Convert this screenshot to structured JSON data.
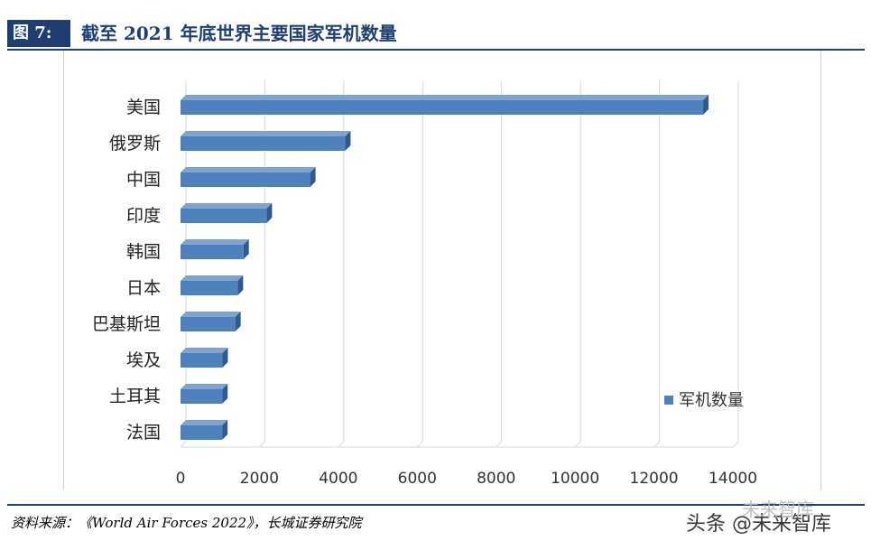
{
  "header": {
    "figure_label": "图 7:",
    "title": "截至 2021 年底世界主要国家军机数量"
  },
  "footer": {
    "source": "资料来源：《World Air Forces 2022》，长城证券研究院"
  },
  "watermark": {
    "text": "头条 @未来智库",
    "faded_text": "未来智库"
  },
  "colors": {
    "bar": "#4f81bd",
    "bar_dark": "#2f5a8f",
    "bar_top": "#7fa3d1",
    "grid": "#d9d9d9",
    "brand": "#1f3f73"
  },
  "chart_data": {
    "type": "bar",
    "orientation": "horizontal",
    "style": "3d",
    "categories": [
      "美国",
      "俄罗斯",
      "中国",
      "印度",
      "韩国",
      "日本",
      "巴基斯坦",
      "埃及",
      "土耳其",
      "法国"
    ],
    "series": [
      {
        "name": "军机数量",
        "values": [
          13246,
          4173,
          3285,
          2182,
          1595,
          1449,
          1387,
          1062,
          1057,
          1055
        ]
      }
    ],
    "x_ticks": [
      "0",
      "2000",
      "4000",
      "6000",
      "8000",
      "10000",
      "12000",
      "14000"
    ],
    "xlim": [
      0,
      14000
    ],
    "grid": true,
    "legend_position": "right"
  }
}
